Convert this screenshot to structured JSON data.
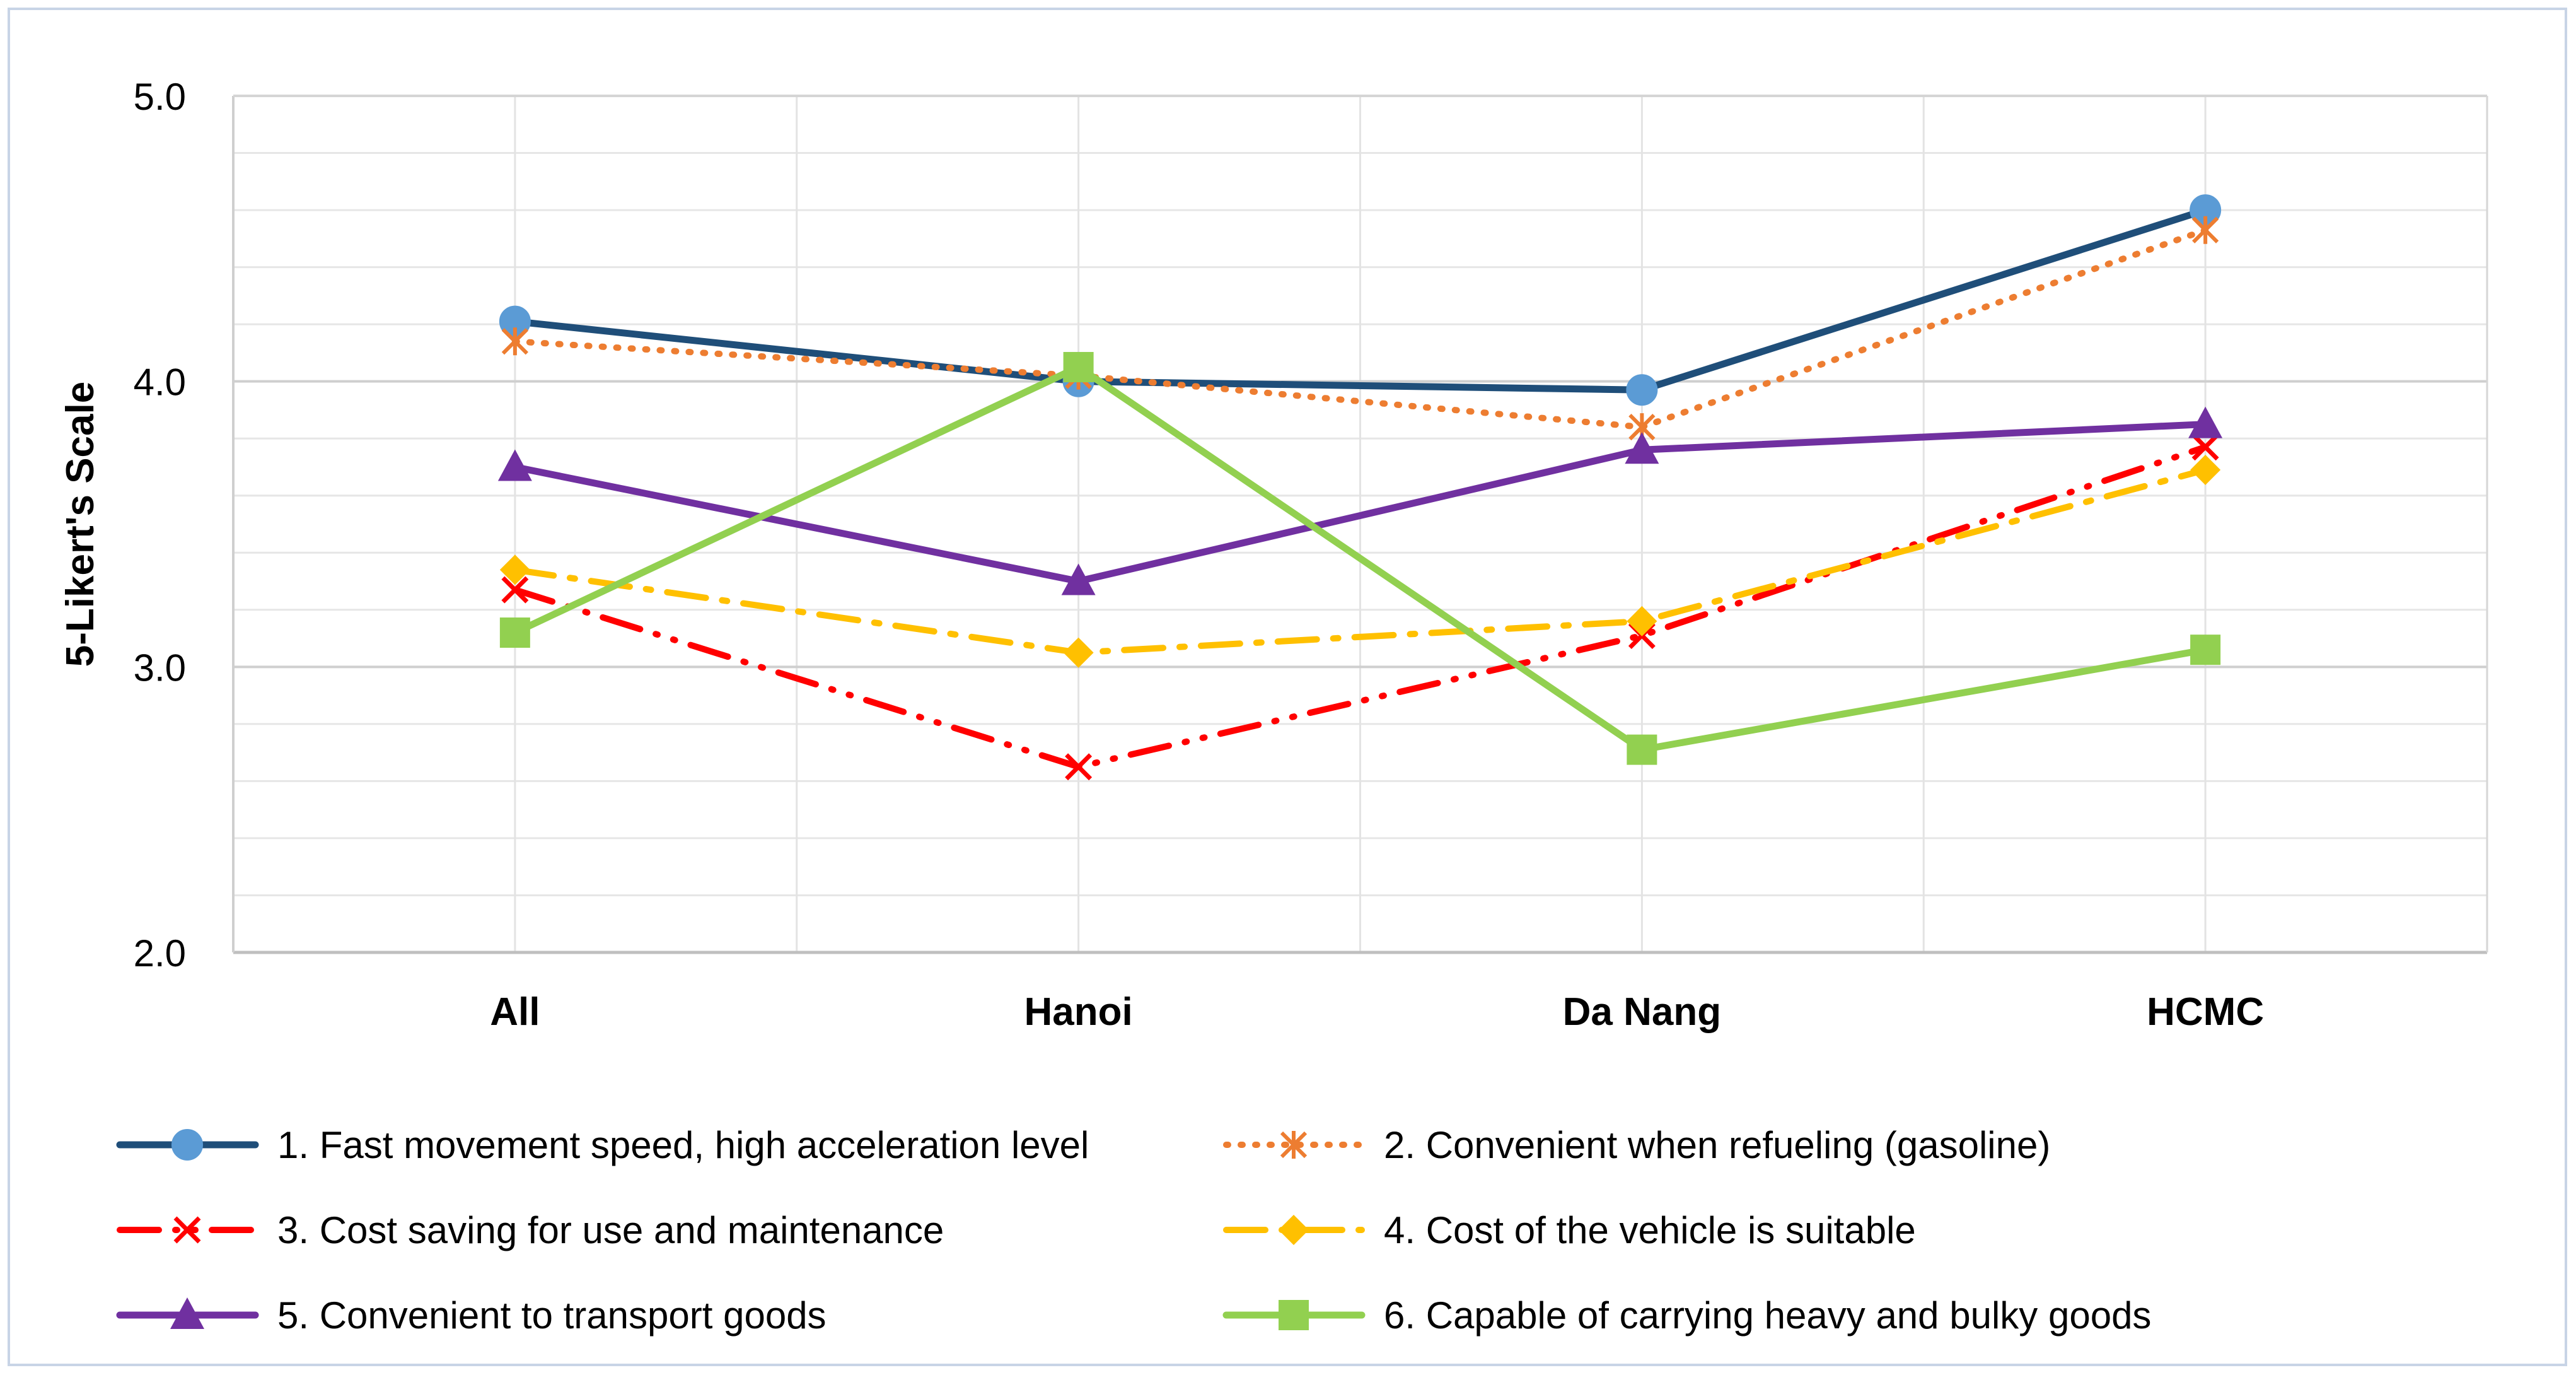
{
  "chart_data": {
    "type": "line",
    "title": "",
    "xlabel": "",
    "ylabel": "5-Likert's Scale",
    "ylim": [
      2.0,
      5.0
    ],
    "ymajor": 1.0,
    "yminor": 0.2,
    "yticks": [
      "2.0",
      "3.0",
      "4.0",
      "5.0"
    ],
    "grid": true,
    "legend_position": "bottom",
    "categories": [
      "All",
      "Hanoi",
      "Da Nang",
      "HCMC"
    ],
    "series": [
      {
        "name": "1. Fast movement speed, high acceleration level",
        "values": [
          4.21,
          4.0,
          3.97,
          4.6
        ],
        "color": "#1f4e79",
        "marker_color": "#5b9bd5",
        "marker": "circle",
        "dash": "solid"
      },
      {
        "name": "2. Convenient when refueling (gasoline)",
        "values": [
          4.14,
          4.02,
          3.84,
          4.53
        ],
        "color": "#ed7d31",
        "marker_color": "#ed7d31",
        "marker": "star",
        "dash": "dot"
      },
      {
        "name": "3. Cost saving for use and maintenance",
        "values": [
          3.27,
          2.65,
          3.11,
          3.77
        ],
        "color": "#ff0000",
        "marker_color": "#ff0000",
        "marker": "x",
        "dash": "longdashdotdot"
      },
      {
        "name": "4. Cost of the vehicle is suitable",
        "values": [
          3.34,
          3.05,
          3.16,
          3.69
        ],
        "color": "#ffc000",
        "marker_color": "#ffc000",
        "marker": "diamond",
        "dash": "longdashdot"
      },
      {
        "name": "5. Convenient to transport goods",
        "values": [
          3.7,
          3.3,
          3.76,
          3.85
        ],
        "color": "#7030a0",
        "marker_color": "#7030a0",
        "marker": "triangle",
        "dash": "solid"
      },
      {
        "name": "6. Capable of carrying heavy and bulky goods",
        "values": [
          3.12,
          4.05,
          2.71,
          3.06
        ],
        "color": "#92d050",
        "marker_color": "#92d050",
        "marker": "square",
        "dash": "solid"
      }
    ]
  }
}
